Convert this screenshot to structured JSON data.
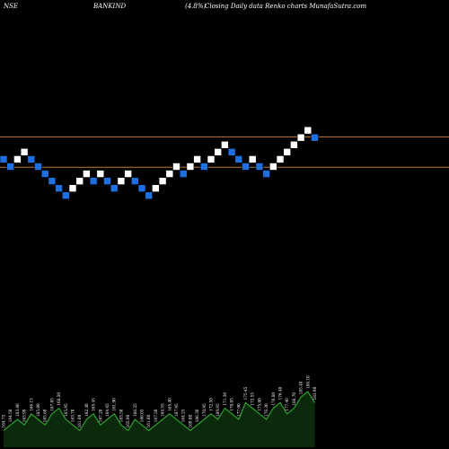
{
  "header": {
    "exchange": "NSE",
    "symbol": "BANKIND",
    "change": "(4.8%)",
    "description": "Closing Daily data Renko charts MunafaSutra.com"
  },
  "colors": {
    "up_brick": "#ffffff",
    "down_brick": "#1e6fe0",
    "brick_outline": "#000000",
    "hline": "#c07a2a",
    "volume_fill": "#0b2a0b",
    "volume_line": "#2fa12f",
    "background": "#000000"
  },
  "chart_data": {
    "type": "renko",
    "up_color": "white",
    "down_color": "blue",
    "bricks": [
      {
        "value": 4,
        "dir": "down"
      },
      {
        "value": 3,
        "dir": "down"
      },
      {
        "value": 4,
        "dir": "up"
      },
      {
        "value": 5,
        "dir": "up"
      },
      {
        "value": 4,
        "dir": "down"
      },
      {
        "value": 3,
        "dir": "down"
      },
      {
        "value": 2,
        "dir": "down"
      },
      {
        "value": 1,
        "dir": "down"
      },
      {
        "value": 0,
        "dir": "down"
      },
      {
        "value": -1,
        "dir": "down"
      },
      {
        "value": 0,
        "dir": "up"
      },
      {
        "value": 1,
        "dir": "up"
      },
      {
        "value": 2,
        "dir": "up"
      },
      {
        "value": 1,
        "dir": "down"
      },
      {
        "value": 2,
        "dir": "up"
      },
      {
        "value": 1,
        "dir": "down"
      },
      {
        "value": 0,
        "dir": "down"
      },
      {
        "value": 1,
        "dir": "up"
      },
      {
        "value": 2,
        "dir": "up"
      },
      {
        "value": 1,
        "dir": "down"
      },
      {
        "value": 0,
        "dir": "down"
      },
      {
        "value": -1,
        "dir": "down"
      },
      {
        "value": 0,
        "dir": "up"
      },
      {
        "value": 1,
        "dir": "up"
      },
      {
        "value": 2,
        "dir": "up"
      },
      {
        "value": 3,
        "dir": "up"
      },
      {
        "value": 2,
        "dir": "down"
      },
      {
        "value": 3,
        "dir": "up"
      },
      {
        "value": 4,
        "dir": "up"
      },
      {
        "value": 3,
        "dir": "down"
      },
      {
        "value": 4,
        "dir": "up"
      },
      {
        "value": 5,
        "dir": "up"
      },
      {
        "value": 6,
        "dir": "up"
      },
      {
        "value": 5,
        "dir": "down"
      },
      {
        "value": 4,
        "dir": "down"
      },
      {
        "value": 3,
        "dir": "down"
      },
      {
        "value": 4,
        "dir": "up"
      },
      {
        "value": 3,
        "dir": "down"
      },
      {
        "value": 2,
        "dir": "down"
      },
      {
        "value": 3,
        "dir": "up"
      },
      {
        "value": 4,
        "dir": "up"
      },
      {
        "value": 5,
        "dir": "up"
      },
      {
        "value": 6,
        "dir": "up"
      },
      {
        "value": 7,
        "dir": "up"
      },
      {
        "value": 8,
        "dir": "up"
      },
      {
        "value": 7,
        "dir": "down"
      }
    ],
    "horizontal_lines": [
      7.1,
      2.9
    ],
    "y_range": [
      -36,
      26
    ],
    "volume": {
      "values": [
        3,
        4,
        5,
        4,
        6,
        5,
        4,
        6,
        7,
        5,
        4,
        3,
        5,
        6,
        4,
        5,
        6,
        4,
        3,
        5,
        4,
        3,
        4,
        5,
        6,
        5,
        4,
        3,
        4,
        5,
        6,
        5,
        7,
        6,
        5,
        8,
        7,
        6,
        5,
        7,
        8,
        6,
        7,
        9,
        10,
        8
      ],
      "labels": [
        "164.75",
        "164.50",
        "163.40",
        "163.90",
        "166.15",
        "165.80",
        "165.60",
        "167.85",
        "168.20",
        "165.95",
        "163.70",
        "161.60",
        "162.30",
        "165.45",
        "167.20",
        "164.45",
        "161.90",
        "163.50",
        "165.90",
        "166.25",
        "166.05",
        "161.80",
        "167.20",
        "164.55",
        "165.40",
        "167.95",
        "164.25",
        "169.80",
        "166.30",
        "170.95",
        "172.50",
        "169.95",
        "171.30",
        "178.05",
        "177.90",
        "175.45",
        "172.55",
        "175.80",
        "176.30",
        "176.60",
        "176.40",
        "177.40",
        "180.70",
        "185.40",
        "186.10",
        "183.90"
      ]
    }
  }
}
